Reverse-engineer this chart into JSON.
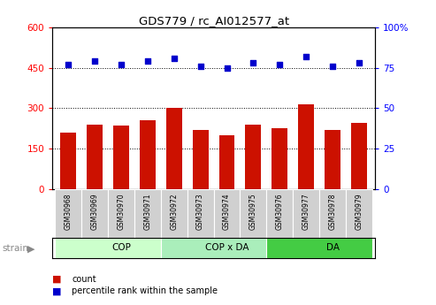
{
  "title": "GDS779 / rc_AI012577_at",
  "samples": [
    "GSM30968",
    "GSM30969",
    "GSM30970",
    "GSM30971",
    "GSM30972",
    "GSM30973",
    "GSM30974",
    "GSM30975",
    "GSM30976",
    "GSM30977",
    "GSM30978",
    "GSM30979"
  ],
  "counts": [
    210,
    240,
    235,
    255,
    302,
    220,
    200,
    240,
    225,
    315,
    220,
    245
  ],
  "percentiles": [
    77,
    79,
    77,
    79,
    81,
    76,
    75,
    78,
    77,
    82,
    76,
    78
  ],
  "groups": [
    {
      "label": "COP",
      "start": 0,
      "end": 4,
      "color_light": "#ccffcc",
      "color_dark": "#66dd66"
    },
    {
      "label": "COP x DA",
      "start": 4,
      "end": 8,
      "color_light": "#ccffcc",
      "color_dark": "#66dd66"
    },
    {
      "label": "DA",
      "start": 8,
      "end": 12,
      "color_light": "#55cc55",
      "color_dark": "#44bb44"
    }
  ],
  "group_colors": [
    "#ccffcc",
    "#aaeebb",
    "#44cc44"
  ],
  "bar_color": "#cc1100",
  "dot_color": "#0000cc",
  "left_ylim": [
    0,
    600
  ],
  "right_ylim": [
    0,
    100
  ],
  "left_yticks": [
    0,
    150,
    300,
    450,
    600
  ],
  "right_yticks": [
    0,
    25,
    50,
    75,
    100
  ],
  "left_yticklabels": [
    "0",
    "150",
    "300",
    "450",
    "600"
  ],
  "right_yticklabels": [
    "0",
    "25",
    "50",
    "75",
    "100%"
  ],
  "grid_values": [
    150,
    300,
    450
  ],
  "bar_width": 0.6,
  "strain_label": "strain",
  "legend_count_label": "count",
  "legend_percentile_label": "percentile rank within the sample"
}
